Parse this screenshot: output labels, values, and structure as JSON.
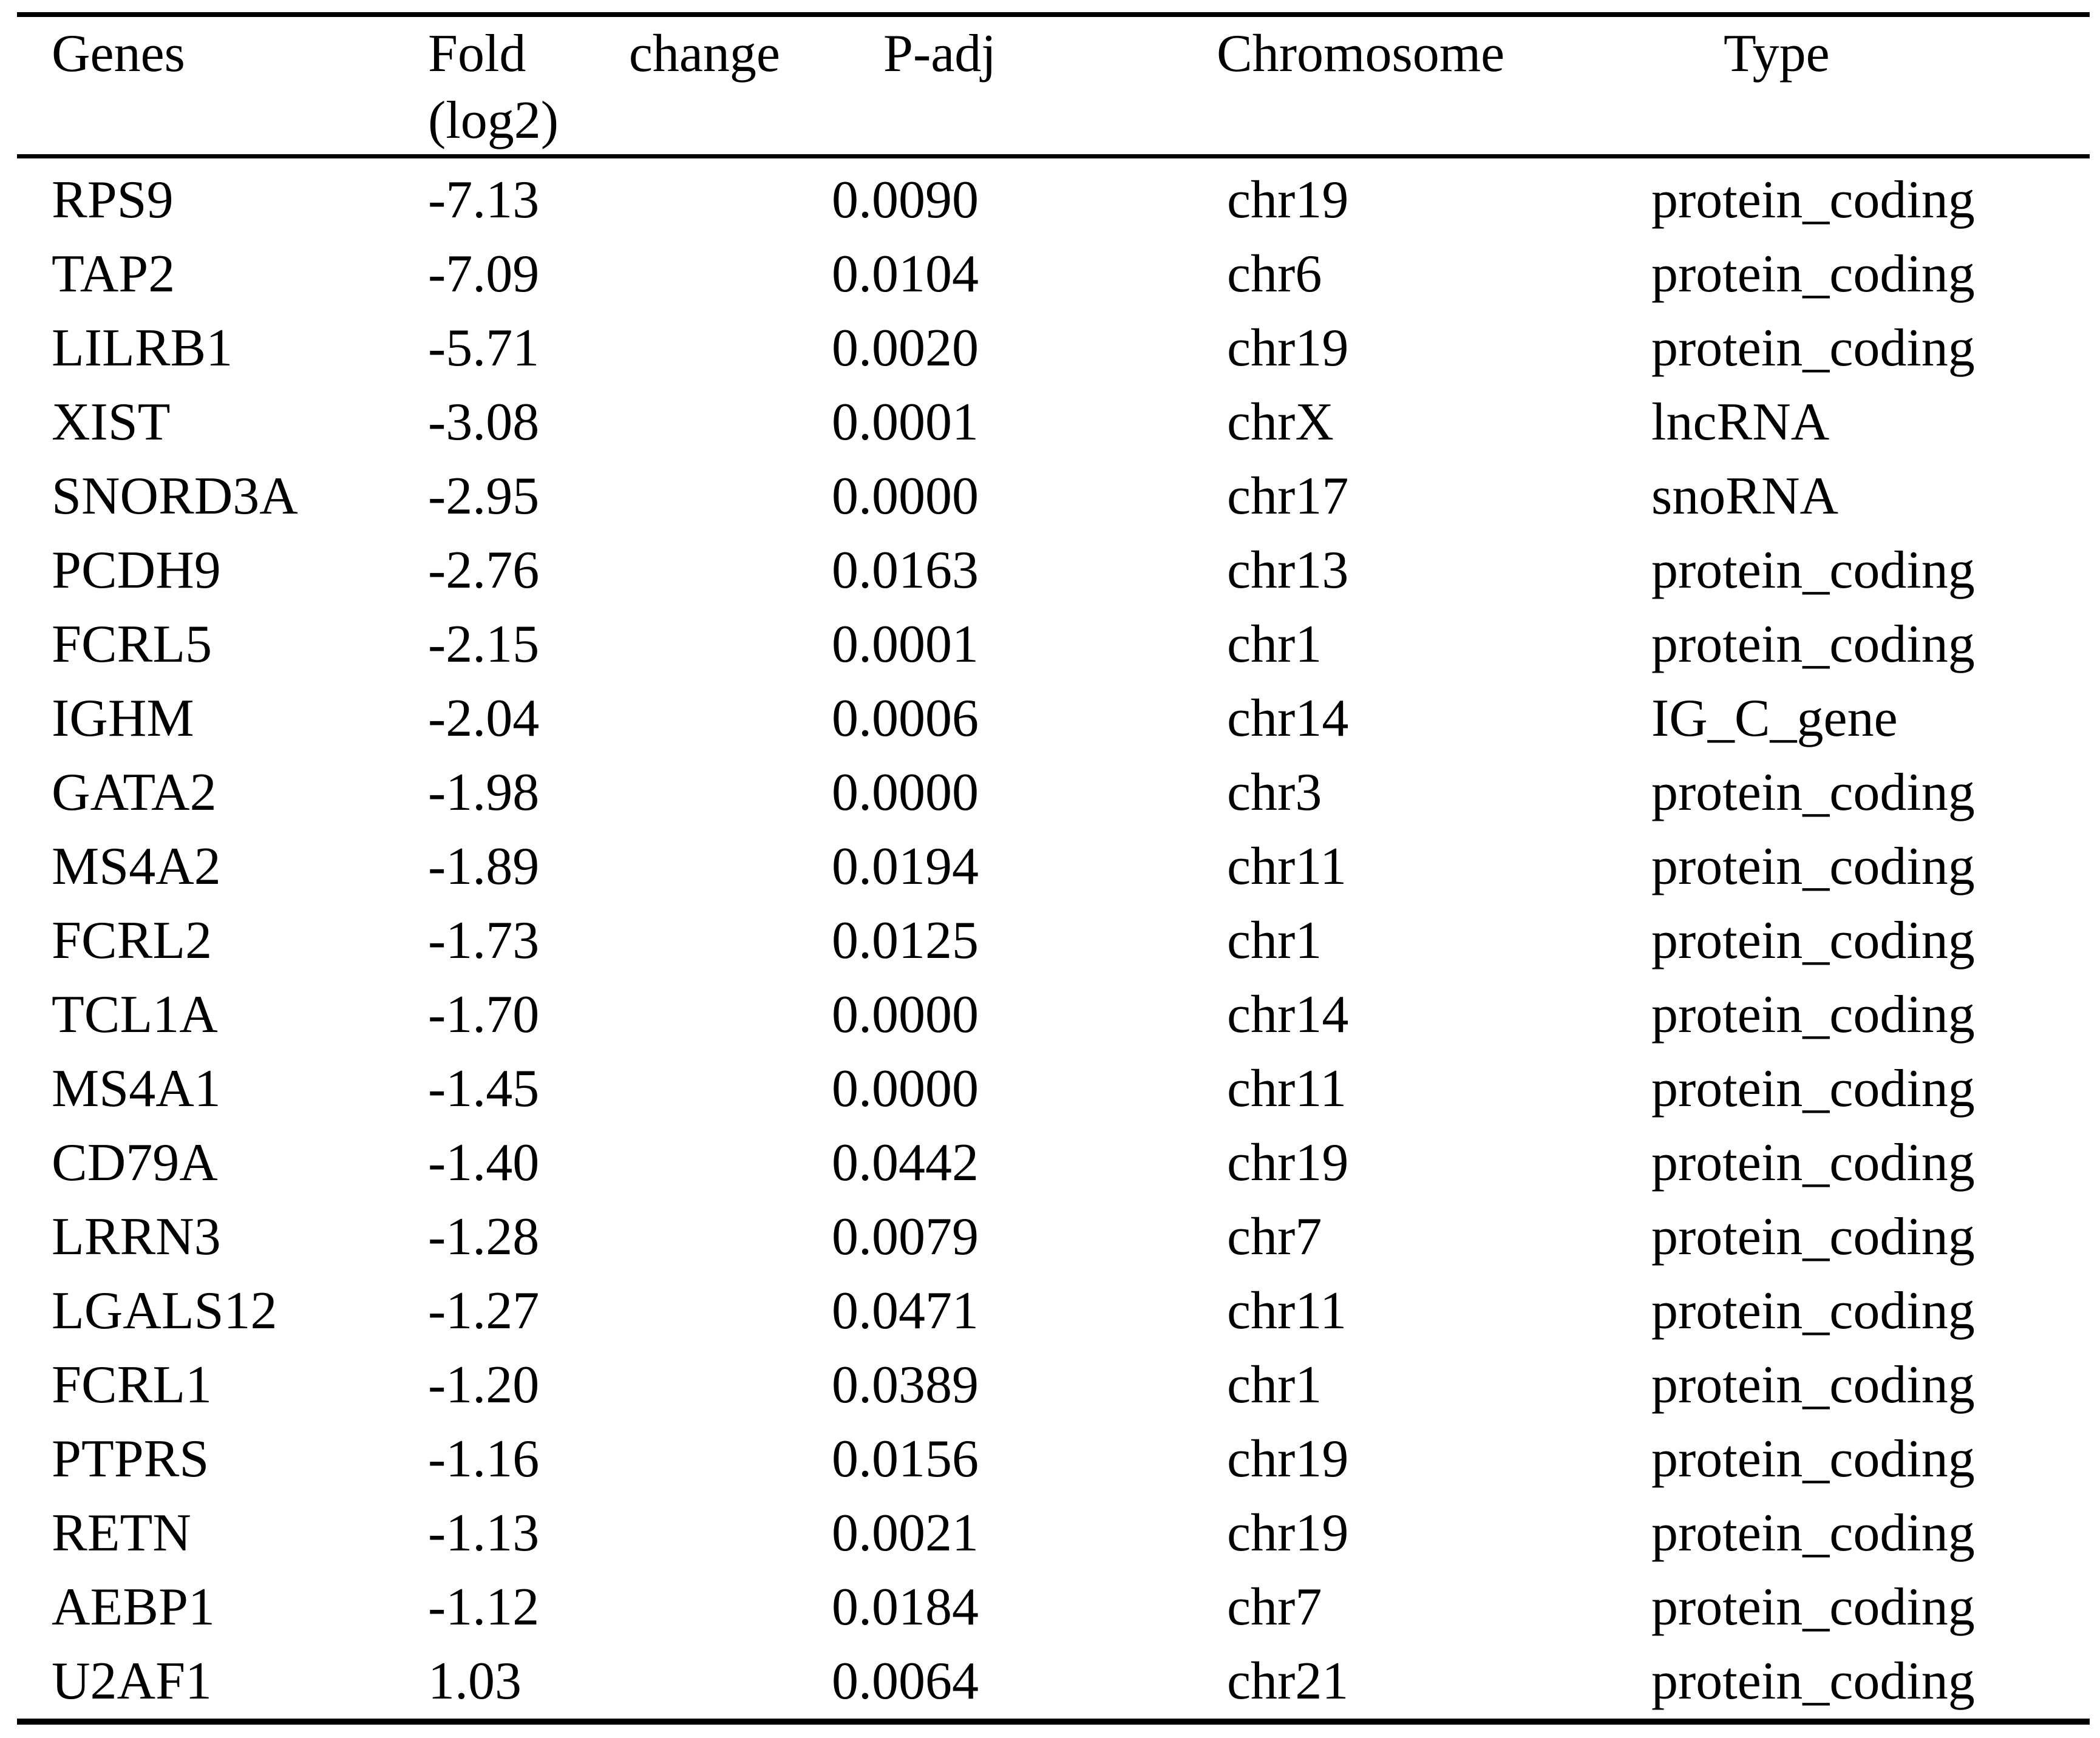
{
  "table": {
    "headers": {
      "genes": "Genes",
      "fold_change": "Fold change (log2)",
      "p_adj": "P-adj",
      "chromosome": "Chromosome",
      "type": "Type"
    },
    "rows": [
      {
        "gene": "RPS9",
        "fold": "-7.13",
        "padj": "0.0090",
        "chromosome": "chr19",
        "type": "protein_coding"
      },
      {
        "gene": "TAP2",
        "fold": "-7.09",
        "padj": "0.0104",
        "chromosome": "chr6",
        "type": "protein_coding"
      },
      {
        "gene": "LILRB1",
        "fold": "-5.71",
        "padj": "0.0020",
        "chromosome": "chr19",
        "type": "protein_coding"
      },
      {
        "gene": "XIST",
        "fold": "-3.08",
        "padj": "0.0001",
        "chromosome": "chrX",
        "type": "lncRNA"
      },
      {
        "gene": "SNORD3A",
        "fold": "-2.95",
        "padj": "0.0000",
        "chromosome": "chr17",
        "type": "snoRNA"
      },
      {
        "gene": "PCDH9",
        "fold": "-2.76",
        "padj": "0.0163",
        "chromosome": "chr13",
        "type": "protein_coding"
      },
      {
        "gene": "FCRL5",
        "fold": "-2.15",
        "padj": "0.0001",
        "chromosome": "chr1",
        "type": "protein_coding"
      },
      {
        "gene": "IGHM",
        "fold": "-2.04",
        "padj": "0.0006",
        "chromosome": "chr14",
        "type": "IG_C_gene"
      },
      {
        "gene": "GATA2",
        "fold": "-1.98",
        "padj": "0.0000",
        "chromosome": "chr3",
        "type": "protein_coding"
      },
      {
        "gene": "MS4A2",
        "fold": "-1.89",
        "padj": "0.0194",
        "chromosome": "chr11",
        "type": "protein_coding"
      },
      {
        "gene": "FCRL2",
        "fold": "-1.73",
        "padj": "0.0125",
        "chromosome": "chr1",
        "type": "protein_coding"
      },
      {
        "gene": "TCL1A",
        "fold": "-1.70",
        "padj": "0.0000",
        "chromosome": "chr14",
        "type": "protein_coding"
      },
      {
        "gene": "MS4A1",
        "fold": "-1.45",
        "padj": "0.0000",
        "chromosome": "chr11",
        "type": "protein_coding"
      },
      {
        "gene": "CD79A",
        "fold": "-1.40",
        "padj": "0.0442",
        "chromosome": "chr19",
        "type": "protein_coding"
      },
      {
        "gene": "LRRN3",
        "fold": "-1.28",
        "padj": "0.0079",
        "chromosome": "chr7",
        "type": "protein_coding"
      },
      {
        "gene": "LGALS12",
        "fold": "-1.27",
        "padj": "0.0471",
        "chromosome": "chr11",
        "type": "protein_coding"
      },
      {
        "gene": "FCRL1",
        "fold": "-1.20",
        "padj": "0.0389",
        "chromosome": "chr1",
        "type": "protein_coding"
      },
      {
        "gene": "PTPRS",
        "fold": "-1.16",
        "padj": "0.0156",
        "chromosome": "chr19",
        "type": "protein_coding"
      },
      {
        "gene": "RETN",
        "fold": "-1.13",
        "padj": "0.0021",
        "chromosome": "chr19",
        "type": "protein_coding"
      },
      {
        "gene": "AEBP1",
        "fold": "-1.12",
        "padj": "0.0184",
        "chromosome": "chr7",
        "type": "protein_coding"
      },
      {
        "gene": "U2AF1",
        "fold": "1.03",
        "padj": "0.0064",
        "chromosome": "chr21",
        "type": "protein_coding"
      }
    ],
    "text_color": "#000000",
    "rule_color": "#000000"
  }
}
